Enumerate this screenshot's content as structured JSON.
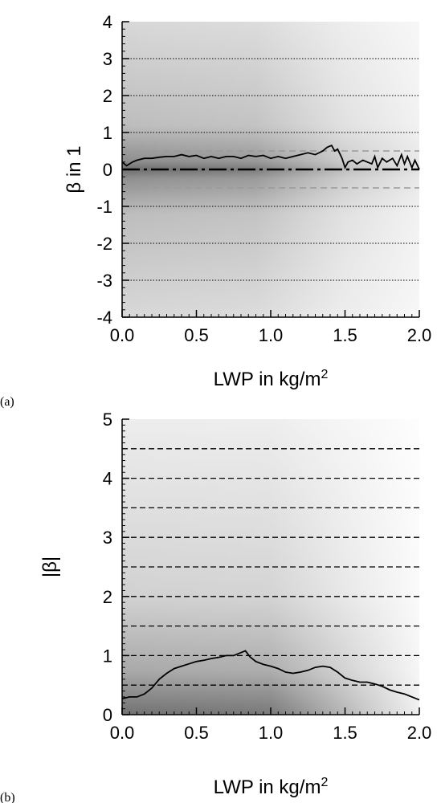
{
  "chart_data": [
    {
      "panel_label": "(a)",
      "type": "line",
      "xlabel": "LWP in kg/m",
      "xlabel_sup": "2",
      "ylabel": "β in 1",
      "xlim": [
        0,
        2
      ],
      "ylim": [
        -4,
        4
      ],
      "x_ticks": [
        "0.0",
        "0.5",
        "1.0",
        "1.5",
        "2.0"
      ],
      "y_ticks": [
        "4",
        "3",
        "2",
        "1",
        "0",
        "-1",
        "-2",
        "-3",
        "-4"
      ],
      "reference_lines": {
        "dotted_black": [
          3,
          2,
          1,
          -1,
          -2,
          -3
        ],
        "dashed_gray": [
          0.5,
          -0.5
        ],
        "dashdot_black": [
          0
        ]
      },
      "background": "grayscale density (darker = more samples), concentrated near β = 0",
      "series": [
        {
          "x": [
            0.0,
            0.03,
            0.07,
            0.1,
            0.15,
            0.2,
            0.25,
            0.3,
            0.35,
            0.4,
            0.45,
            0.5,
            0.55,
            0.6,
            0.65,
            0.7,
            0.75,
            0.8,
            0.85,
            0.9,
            0.95,
            1.0,
            1.05,
            1.1,
            1.15,
            1.2,
            1.25,
            1.3,
            1.35,
            1.38,
            1.41,
            1.43,
            1.45,
            1.48,
            1.5,
            1.52,
            1.55,
            1.58,
            1.62,
            1.65,
            1.68,
            1.7,
            1.72,
            1.75,
            1.78,
            1.82,
            1.85,
            1.88,
            1.9,
            1.92,
            1.95,
            1.97,
            2.0
          ],
          "y": [
            0.2,
            0.1,
            0.2,
            0.25,
            0.3,
            0.3,
            0.33,
            0.35,
            0.35,
            0.4,
            0.35,
            0.38,
            0.3,
            0.35,
            0.3,
            0.35,
            0.35,
            0.3,
            0.38,
            0.35,
            0.38,
            0.3,
            0.35,
            0.3,
            0.35,
            0.4,
            0.45,
            0.4,
            0.5,
            0.6,
            0.65,
            0.5,
            0.55,
            0.3,
            0.05,
            0.2,
            0.25,
            0.15,
            0.25,
            0.2,
            0.15,
            0.35,
            0.05,
            0.3,
            0.2,
            0.3,
            0.1,
            0.4,
            0.15,
            0.35,
            0.05,
            0.25,
            0.0
          ]
        }
      ]
    },
    {
      "panel_label": "(b)",
      "type": "line",
      "xlabel": "LWP in kg/m",
      "xlabel_sup": "2",
      "ylabel": "|β|",
      "xlim": [
        0,
        2
      ],
      "ylim": [
        0,
        5
      ],
      "x_ticks": [
        "0.0",
        "0.5",
        "1.0",
        "1.5",
        "2.0"
      ],
      "y_ticks": [
        "5",
        "4",
        "3",
        "2",
        "1",
        "0"
      ],
      "reference_lines": {
        "dashed_black": [
          4.5,
          4.0,
          3.5,
          3.0,
          2.5,
          2.0,
          1.5,
          1.0,
          0.5
        ]
      },
      "background": "grayscale density (darker = more samples), concentrated near |β| = 0",
      "series": [
        {
          "x": [
            0.0,
            0.05,
            0.1,
            0.15,
            0.2,
            0.25,
            0.3,
            0.35,
            0.4,
            0.45,
            0.5,
            0.55,
            0.6,
            0.65,
            0.7,
            0.75,
            0.8,
            0.83,
            0.86,
            0.9,
            0.95,
            1.0,
            1.05,
            1.1,
            1.15,
            1.2,
            1.25,
            1.3,
            1.35,
            1.4,
            1.45,
            1.5,
            1.55,
            1.6,
            1.65,
            1.7,
            1.75,
            1.8,
            1.85,
            1.9,
            1.95,
            2.0
          ],
          "y": [
            0.27,
            0.3,
            0.3,
            0.35,
            0.45,
            0.6,
            0.7,
            0.78,
            0.82,
            0.86,
            0.9,
            0.92,
            0.95,
            0.97,
            1.0,
            1.0,
            1.05,
            1.08,
            0.98,
            0.9,
            0.85,
            0.82,
            0.78,
            0.72,
            0.7,
            0.72,
            0.75,
            0.8,
            0.82,
            0.8,
            0.72,
            0.62,
            0.58,
            0.55,
            0.55,
            0.52,
            0.48,
            0.42,
            0.38,
            0.35,
            0.3,
            0.25
          ]
        }
      ]
    }
  ]
}
